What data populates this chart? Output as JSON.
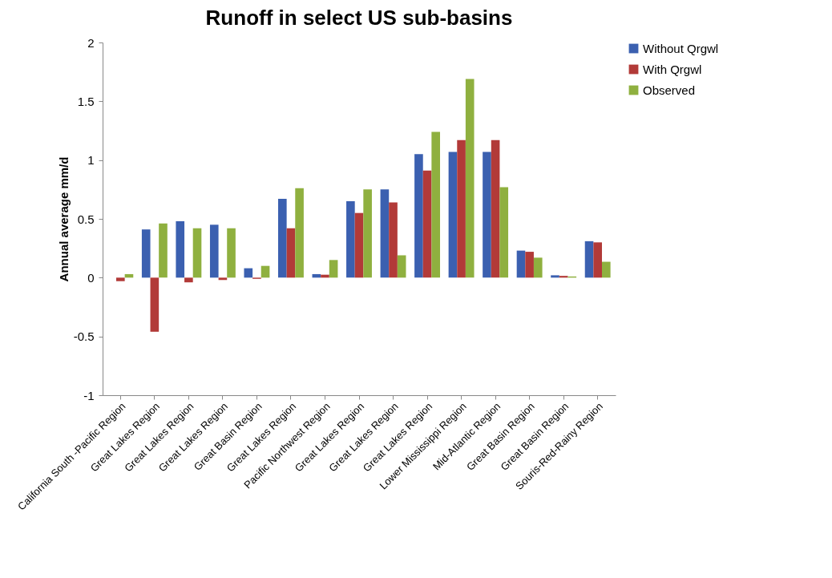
{
  "chart_data": {
    "type": "bar",
    "title": "Runoff in select US sub-basins",
    "ylabel": "Annual average mm/d",
    "categories": [
      "California South -Pacific Region",
      "Great Lakes Region",
      "Great Lakes Region",
      "Great Lakes Region",
      "Great Basin Region",
      "Great Lakes Region",
      "Pacific Northwest Region",
      "Great Lakes Region",
      "Great Lakes Region",
      "Great Lakes Region",
      "Lower Mississippi Region",
      "Mid-Atlantic Region",
      "Great Basin Region",
      "Great Basin Region",
      "Souris-Red-Rainy Region"
    ],
    "series": [
      {
        "name": "Without Qrgwl",
        "color": "#3b60b0",
        "values": [
          0,
          0.41,
          0.48,
          0.45,
          0.08,
          0.67,
          0.03,
          0.65,
          0.75,
          1.05,
          1.07,
          1.07,
          0.23,
          0.02,
          0.31
        ]
      },
      {
        "name": "With Qrgwl",
        "color": "#b23a38",
        "values": [
          -0.03,
          -0.46,
          -0.04,
          -0.02,
          -0.01,
          0.42,
          0.025,
          0.55,
          0.64,
          0.91,
          1.17,
          1.17,
          0.22,
          0.015,
          0.3
        ]
      },
      {
        "name": "Observed",
        "color": "#8fb03f",
        "values": [
          0.03,
          0.46,
          0.42,
          0.42,
          0.1,
          0.76,
          0.15,
          0.75,
          0.19,
          1.24,
          1.69,
          0.77,
          0.17,
          0.01,
          0.135
        ]
      }
    ],
    "ylim": [
      -1,
      2
    ],
    "yticks": [
      -1,
      -0.5,
      0,
      0.5,
      1,
      1.5,
      2
    ],
    "grid": false,
    "legend": "right"
  }
}
